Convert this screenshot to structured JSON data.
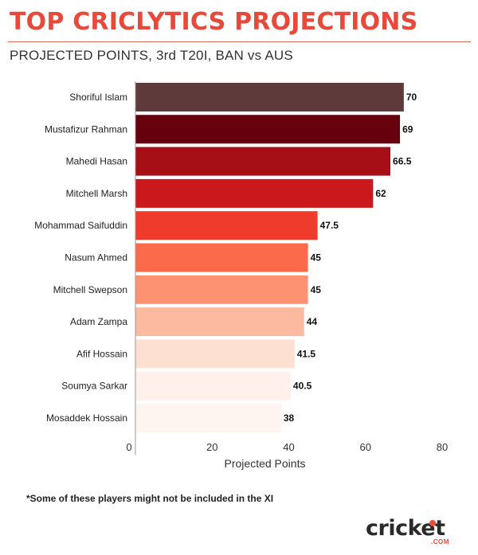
{
  "header": {
    "title": "TOP CRICLYTICS PROJECTIONS",
    "subtitle": "PROJECTED POINTS, 3rd T20I, BAN vs AUS"
  },
  "chart_data": {
    "type": "bar",
    "orientation": "horizontal",
    "categories": [
      "Shoriful Islam",
      "Mustafizur Rahman",
      "Mahedi Hasan",
      "Mitchell Marsh",
      "Mohammad Saifuddin",
      "Nasum Ahmed",
      "Mitchell Swepson",
      "Adam Zampa",
      "Afif Hossain",
      "Soumya Sarkar",
      "Mosaddek Hossain"
    ],
    "values": [
      70,
      69,
      66.5,
      62,
      47.5,
      45,
      45,
      44,
      41.5,
      40.5,
      38
    ],
    "value_labels": [
      "70",
      "69",
      "66.5",
      "62",
      "47.5",
      "45",
      "45",
      "44",
      "41.5",
      "40.5",
      "38"
    ],
    "colors": [
      "#5e3a3a",
      "#67000d",
      "#a50f15",
      "#cb181d",
      "#ef3b2c",
      "#fb6a4a",
      "#fc9272",
      "#fcbba1",
      "#fee0d2",
      "#fff0eb",
      "#fff5f0"
    ],
    "xlabel": "Projected Points",
    "ylabel": "",
    "xlim": [
      0,
      80
    ],
    "xticks": [
      0,
      20,
      40,
      60,
      80
    ],
    "grid": false
  },
  "footnote": "*Some of these players might not be included in the XI",
  "logo": {
    "word": "cricket",
    "sub": ".COM"
  }
}
